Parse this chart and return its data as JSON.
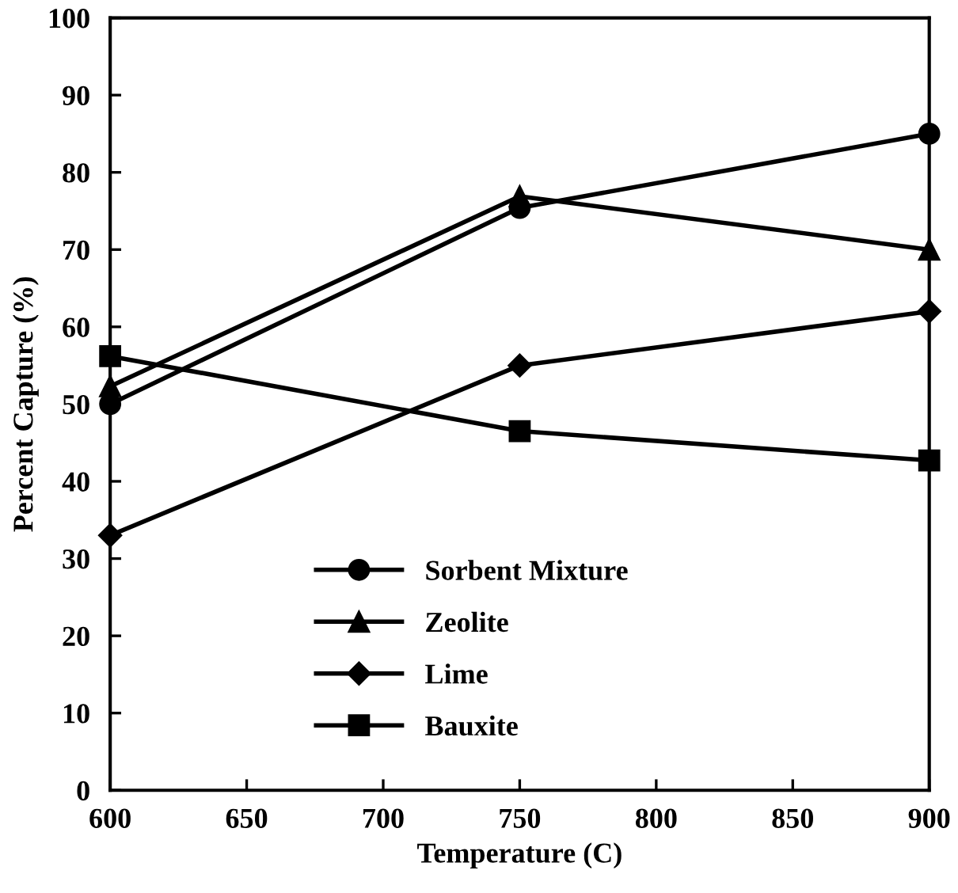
{
  "chart_data": {
    "type": "line",
    "xlabel": "Temperature (C)",
    "ylabel": "Percent Capture (%)",
    "x": [
      600,
      750,
      900
    ],
    "series": [
      {
        "name": "Sorbent Mixture",
        "color": "#000000",
        "marker": "circle",
        "values": [
          50,
          75.4,
          85
        ]
      },
      {
        "name": "Zeolite",
        "color": "#000000",
        "marker": "triangle",
        "values": [
          52.3,
          76.9,
          70
        ]
      },
      {
        "name": "Lime",
        "color": "#000000",
        "marker": "diamond",
        "values": [
          33,
          55,
          62
        ]
      },
      {
        "name": "Bauxite",
        "color": "#000000",
        "marker": "square",
        "values": [
          56.2,
          46.5,
          42.7
        ]
      }
    ],
    "xlim": [
      600,
      900
    ],
    "xticks": [
      600,
      650,
      700,
      750,
      800,
      850,
      900
    ],
    "ylim": [
      0,
      100
    ],
    "yticks": [
      0,
      10,
      20,
      30,
      40,
      50,
      60,
      70,
      80,
      90,
      100
    ],
    "grid": false,
    "legend": "bottom left",
    "line_style": "solid"
  }
}
